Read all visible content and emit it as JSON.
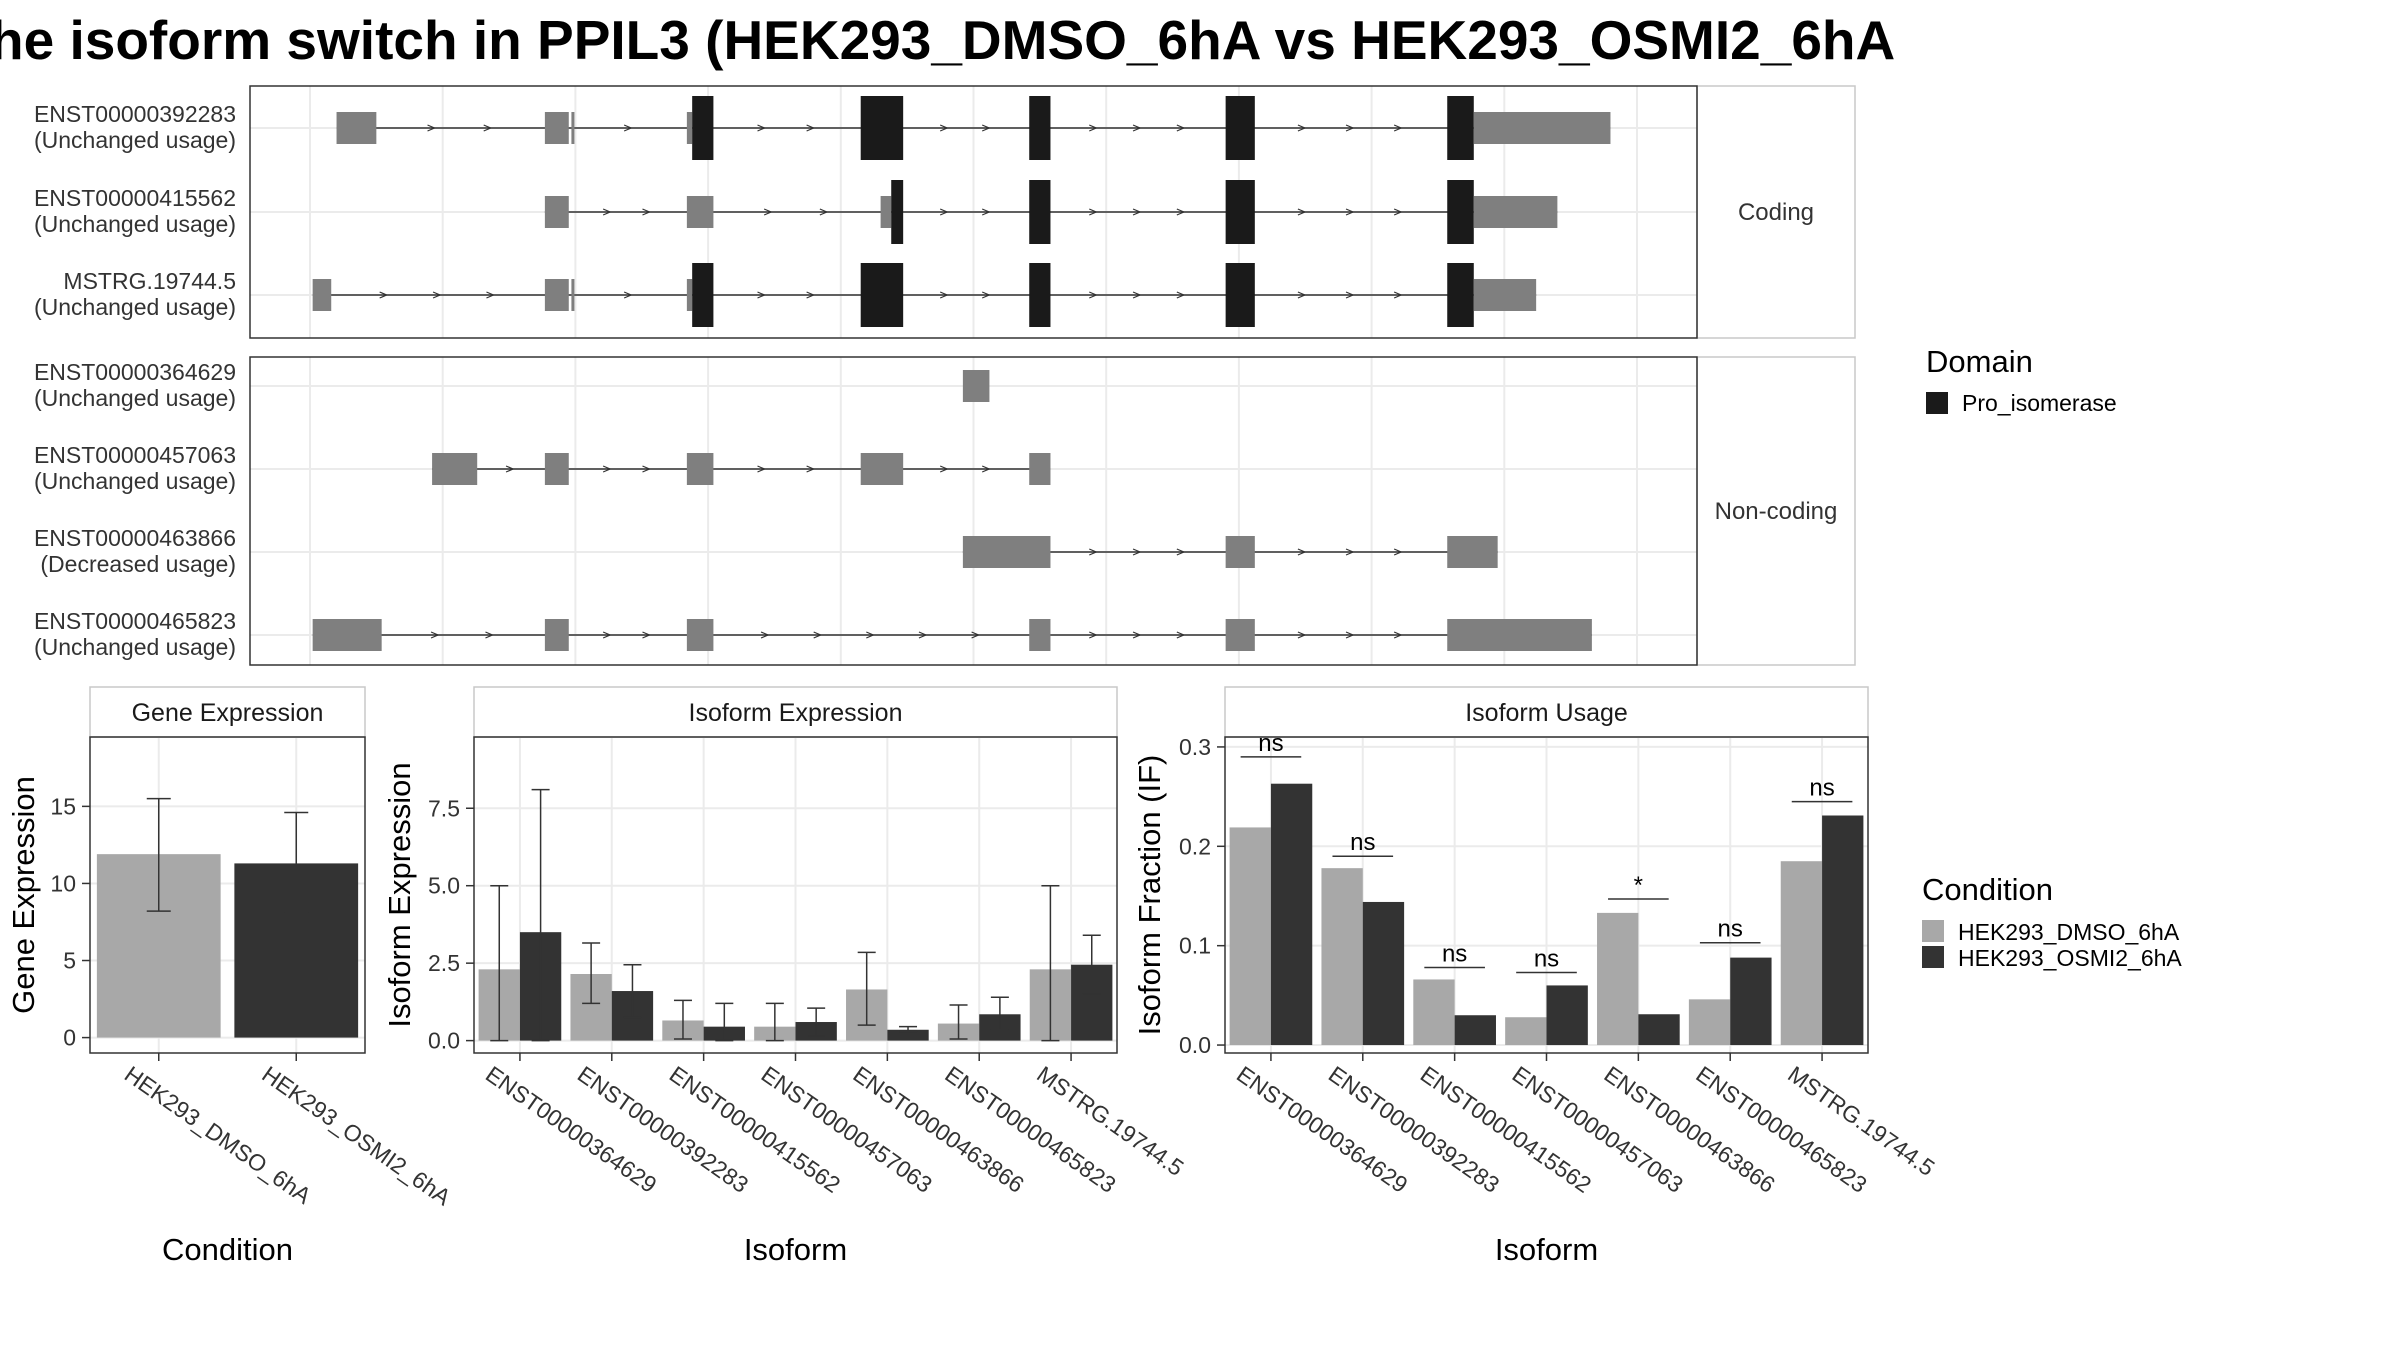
{
  "title": "he isoform switch in PPIL3 (HEK293_DMSO_6hA vs HEK293_OSMI2_6hA",
  "colors": {
    "dmso": "#a8a8a8",
    "osmi2": "#333333",
    "exon_utr": "#7f7f7f",
    "domain": "#1a1a1a",
    "strip_bg": "#ffffff",
    "grid": "#ebebeb"
  },
  "structure": {
    "x_range": [
      0,
      1000
    ],
    "groups": [
      {
        "facet_label": "Coding",
        "transcripts": [
          {
            "name": "ENST00000392283",
            "status": "(Unchanged usage)",
            "exons": [
              [
                20,
                50,
                "utr"
              ],
              [
                177,
                195,
                "utr"
              ],
              [
                197,
                197,
                "utr"
              ],
              [
                284,
                288,
                "utr"
              ],
              [
                288,
                304,
                "domain"
              ],
              [
                415,
                447,
                "domain"
              ],
              [
                542,
                558,
                "domain"
              ],
              [
                690,
                712,
                "domain"
              ],
              [
                857,
                877,
                "domain"
              ],
              [
                877,
                980,
                "utr"
              ]
            ]
          },
          {
            "name": "ENST00000415562",
            "status": "(Unchanged usage)",
            "exons": [
              [
                177,
                195,
                "utr"
              ],
              [
                284,
                304,
                "utr"
              ],
              [
                430,
                438,
                "utr"
              ],
              [
                438,
                447,
                "domain"
              ],
              [
                542,
                558,
                "domain"
              ],
              [
                690,
                712,
                "domain"
              ],
              [
                857,
                877,
                "domain"
              ],
              [
                877,
                940,
                "utr"
              ]
            ]
          },
          {
            "name": "MSTRG.19744.5",
            "status": "(Unchanged usage)",
            "exons": [
              [
                2,
                16,
                "utr"
              ],
              [
                177,
                195,
                "utr"
              ],
              [
                197,
                197,
                "utr"
              ],
              [
                284,
                288,
                "utr"
              ],
              [
                288,
                304,
                "domain"
              ],
              [
                415,
                447,
                "domain"
              ],
              [
                542,
                558,
                "domain"
              ],
              [
                690,
                712,
                "domain"
              ],
              [
                857,
                877,
                "domain"
              ],
              [
                877,
                924,
                "utr"
              ]
            ]
          }
        ]
      },
      {
        "facet_label": "Non-coding",
        "transcripts": [
          {
            "name": "ENST00000364629",
            "status": "(Unchanged usage)",
            "exons": [
              [
                492,
                512,
                "utr"
              ]
            ]
          },
          {
            "name": "ENST00000457063",
            "status": "(Unchanged usage)",
            "exons": [
              [
                92,
                126,
                "utr"
              ],
              [
                177,
                195,
                "utr"
              ],
              [
                284,
                304,
                "utr"
              ],
              [
                415,
                447,
                "utr"
              ],
              [
                542,
                558,
                "utr"
              ]
            ]
          },
          {
            "name": "ENST00000463866",
            "status": "(Decreased usage)",
            "exons": [
              [
                492,
                558,
                "utr"
              ],
              [
                690,
                712,
                "utr"
              ],
              [
                857,
                895,
                "utr"
              ]
            ]
          },
          {
            "name": "ENST00000465823",
            "status": "(Unchanged usage)",
            "exons": [
              [
                2,
                54,
                "utr"
              ],
              [
                177,
                195,
                "utr"
              ],
              [
                284,
                304,
                "utr"
              ],
              [
                542,
                558,
                "utr"
              ],
              [
                690,
                712,
                "utr"
              ],
              [
                857,
                966,
                "utr"
              ]
            ]
          }
        ]
      }
    ]
  },
  "domain_legend": {
    "title": "Domain",
    "items": [
      "Pro_isomerase"
    ]
  },
  "condition_legend": {
    "title": "Condition",
    "items": [
      "HEK293_DMSO_6hA",
      "HEK293_OSMI2_6hA"
    ]
  },
  "chart_data": [
    {
      "type": "bar",
      "panel_title": "Gene Expression",
      "xlabel": "Condition",
      "ylabel": "Gene Expression",
      "ylim": [
        -1,
        19.5
      ],
      "yticks": [
        0,
        5,
        10,
        15
      ],
      "categories": [
        "HEK293_DMSO_6hA",
        "HEK293_OSMI2_6hA"
      ],
      "values": [
        11.9,
        11.3
      ],
      "errors": [
        [
          8.2,
          15.5
        ],
        [
          8.1,
          14.6
        ]
      ]
    },
    {
      "type": "bar",
      "panel_title": "Isoform Expression",
      "xlabel": "Isoform",
      "ylabel": "Isoform Expression",
      "ylim": [
        -0.4,
        9.8
      ],
      "yticks": [
        0.0,
        2.5,
        5.0,
        7.5
      ],
      "categories": [
        "ENST00000364629",
        "ENST00000392283",
        "ENST00000415562",
        "ENST00000457063",
        "ENST00000463866",
        "ENST00000465823",
        "MSTRG.19744.5"
      ],
      "series": [
        {
          "name": "HEK293_DMSO_6hA",
          "values": [
            2.3,
            2.15,
            0.65,
            0.45,
            1.65,
            0.55,
            2.3
          ],
          "errors": [
            [
              0,
              5.0
            ],
            [
              1.2,
              3.15
            ],
            [
              0.05,
              1.3
            ],
            [
              0,
              1.2
            ],
            [
              0.5,
              2.85
            ],
            [
              0.05,
              1.15
            ],
            [
              0,
              5.0
            ]
          ]
        },
        {
          "name": "HEK293_OSMI2_6hA",
          "values": [
            3.5,
            1.6,
            0.45,
            0.6,
            0.35,
            0.85,
            2.45
          ],
          "errors": [
            [
              0,
              8.1
            ],
            [
              0.75,
              2.45
            ],
            [
              0,
              1.2
            ],
            [
              0.15,
              1.05
            ],
            [
              0.3,
              0.45
            ],
            [
              0.35,
              1.4
            ],
            [
              1.5,
              3.4
            ]
          ]
        }
      ]
    },
    {
      "type": "bar",
      "panel_title": "Isoform Usage",
      "xlabel": "Isoform",
      "ylabel": "Isoform Fraction (IF)",
      "ylim": [
        -0.008,
        0.31
      ],
      "yticks": [
        0.0,
        0.1,
        0.2,
        0.3
      ],
      "categories": [
        "ENST00000364629",
        "ENST00000392283",
        "ENST00000415562",
        "ENST00000457063",
        "ENST00000463866",
        "ENST00000465823",
        "MSTRG.19744.5"
      ],
      "series": [
        {
          "name": "HEK293_DMSO_6hA",
          "values": [
            0.219,
            0.178,
            0.066,
            0.028,
            0.133,
            0.046,
            0.185
          ]
        },
        {
          "name": "HEK293_OSMI2_6hA",
          "values": [
            0.263,
            0.144,
            0.03,
            0.06,
            0.031,
            0.088,
            0.231
          ]
        }
      ],
      "significance": [
        "ns",
        "ns",
        "ns",
        "ns",
        "*",
        "ns",
        "ns"
      ],
      "sig_y": [
        0.29,
        0.19,
        0.078,
        0.073,
        0.147,
        0.103,
        0.245
      ]
    }
  ]
}
